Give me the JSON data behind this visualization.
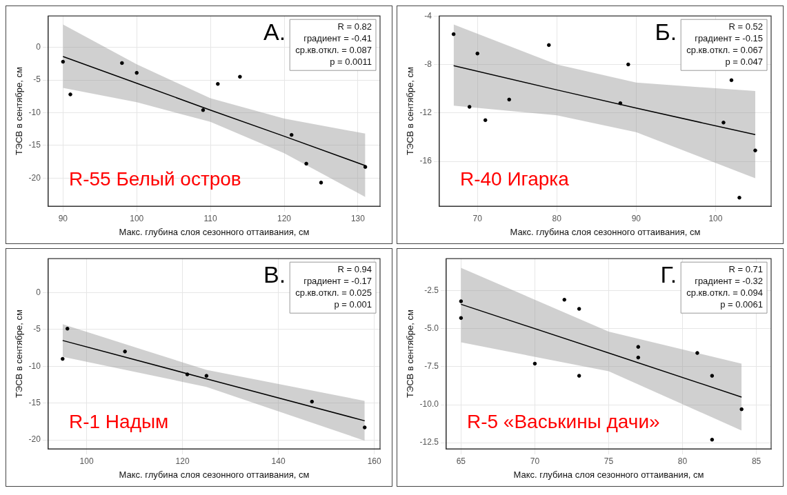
{
  "chart_data": [
    {
      "type": "scatter",
      "title": "А.",
      "subtitle": "R-55 Белый остров",
      "xlabel": "Макс. глубина слоя сезонного оттаивания, см",
      "ylabel": "ТЭСВ в сентябре, см",
      "annotations": [
        "R = 0.82",
        "градиент = -0.41",
        "ср.кв.откл. = 0.087",
        "p = 0.0011"
      ],
      "xlim": [
        88,
        133
      ],
      "ylim": [
        -24.3,
        4.8
      ],
      "xticks": [
        90,
        100,
        110,
        120,
        130
      ],
      "yticks": [
        -20,
        -15,
        -10,
        -5,
        0
      ],
      "grid": true,
      "legend": false,
      "line_style": "solid",
      "series": [
        {
          "type": "scatter",
          "marker": "circle",
          "color": "#000000",
          "x": [
            90,
            91,
            98,
            100,
            109,
            111,
            114,
            121,
            123,
            125,
            131
          ],
          "values": [
            -2.2,
            -7.2,
            -2.4,
            -3.9,
            -9.6,
            -5.6,
            -4.5,
            -13.4,
            -17.8,
            -20.7,
            -18.3
          ]
        },
        {
          "type": "line",
          "marker": "none",
          "color": "#000000",
          "x": [
            90,
            100,
            110,
            120,
            131
          ],
          "values": [
            -1.4,
            -5.5,
            -9.6,
            -13.6,
            -18.1
          ],
          "lower": [
            -6.2,
            -8.4,
            -11.4,
            -16.2,
            -22.9
          ],
          "upper": [
            3.5,
            -2.6,
            -7.8,
            -10.9,
            -13.2
          ]
        }
      ]
    },
    {
      "type": "scatter",
      "title": "Б.",
      "subtitle": "R-40 Игарка",
      "xlabel": "Макс. глубина слоя сезонного оттаивания, см",
      "ylabel": "ТЭСВ в сентябре, см",
      "annotations": [
        "R = 0.52",
        "градиент = -0.15",
        "ср.кв.откл. = 0.067",
        "p = 0.047"
      ],
      "xlim": [
        65.2,
        107
      ],
      "ylim": [
        -19.7,
        -4
      ],
      "xticks": [
        70,
        80,
        90,
        100
      ],
      "yticks": [
        -16,
        -12,
        -8,
        -4
      ],
      "grid": true,
      "legend": false,
      "line_style": "solid",
      "series": [
        {
          "type": "scatter",
          "marker": "circle",
          "color": "#000000",
          "x": [
            67,
            69,
            70,
            71,
            74,
            79,
            88,
            89,
            101,
            102,
            103,
            105
          ],
          "values": [
            -5.5,
            -11.5,
            -7.1,
            -12.6,
            -10.9,
            -6.4,
            -11.2,
            -8,
            -12.8,
            -9.3,
            -19,
            -15.1
          ]
        },
        {
          "type": "line",
          "marker": "none",
          "color": "#000000",
          "x": [
            67,
            80,
            90,
            105
          ],
          "values": [
            -8.1,
            -10.1,
            -11.6,
            -13.8
          ],
          "lower": [
            -11.4,
            -12.2,
            -13.6,
            -17.4
          ],
          "upper": [
            -4.7,
            -8,
            -9.5,
            -10.2
          ]
        }
      ]
    },
    {
      "type": "scatter",
      "title": "В.",
      "subtitle": "R-1 Надым",
      "xlabel": "Макс. глубина слоя сезонного оттаивания, см",
      "ylabel": "ТЭСВ в сентябре, см",
      "annotations": [
        "R = 0.94",
        "градиент = -0.17",
        "ср.кв.откл. = 0.025",
        "p = 0.001"
      ],
      "xlim": [
        92,
        161.2
      ],
      "ylim": [
        -21.2,
        4.6
      ],
      "xticks": [
        100,
        120,
        140,
        160
      ],
      "yticks": [
        -20,
        -15,
        -10,
        -5,
        0
      ],
      "grid": true,
      "legend": false,
      "line_style": "solid",
      "series": [
        {
          "type": "scatter",
          "marker": "circle",
          "color": "#000000",
          "x": [
            95,
            96,
            108,
            121,
            125,
            147,
            158
          ],
          "values": [
            -9,
            -4.9,
            -8,
            -11.1,
            -11.3,
            -14.8,
            -18.3
          ]
        },
        {
          "type": "line",
          "marker": "none",
          "color": "#000000",
          "x": [
            95,
            125,
            158
          ],
          "values": [
            -6.5,
            -11.7,
            -17.4
          ],
          "lower": [
            -8.7,
            -12.8,
            -20.1
          ],
          "upper": [
            -4.3,
            -10.5,
            -14.7
          ]
        }
      ]
    },
    {
      "type": "scatter",
      "title": "Г.",
      "subtitle": "R-5 «Васькины дачи»",
      "xlabel": "Макс. глубина слоя сезонного оттаивания, см",
      "ylabel": "ТЭСВ в сентябре, см",
      "annotations": [
        "R = 0.71",
        "градиент = -0.32",
        "ср.кв.откл. = 0.094",
        "p = 0.0061"
      ],
      "xlim": [
        64,
        86
      ],
      "ylim": [
        -12.9,
        -0.4
      ],
      "xticks": [
        65,
        70,
        75,
        80,
        85
      ],
      "yticks": [
        {
          "value": -12.5,
          "label": "-12.5"
        },
        {
          "value": -10,
          "label": "-10.0"
        },
        {
          "value": -7.5,
          "label": "-7.5"
        },
        {
          "value": -5,
          "label": "-5.0"
        },
        {
          "value": -2.5,
          "label": "-2.5"
        }
      ],
      "grid": true,
      "legend": false,
      "line_style": "solid",
      "series": [
        {
          "type": "scatter",
          "marker": "circle",
          "color": "#000000",
          "x": [
            65,
            65,
            70,
            72,
            73,
            73,
            77,
            77,
            81,
            82,
            82,
            84
          ],
          "values": [
            -3.2,
            -4.3,
            -7.3,
            -3.1,
            -3.7,
            -8.1,
            -6.2,
            -6.9,
            -6.6,
            -8.1,
            -12.3,
            -10.3
          ]
        },
        {
          "type": "line",
          "marker": "none",
          "color": "#000000",
          "x": [
            65,
            75,
            84
          ],
          "values": [
            -3.4,
            -6.6,
            -9.5
          ],
          "lower": [
            -5.9,
            -7.8,
            -11.7
          ],
          "upper": [
            -1,
            -5.2,
            -7.3
          ]
        }
      ]
    }
  ]
}
